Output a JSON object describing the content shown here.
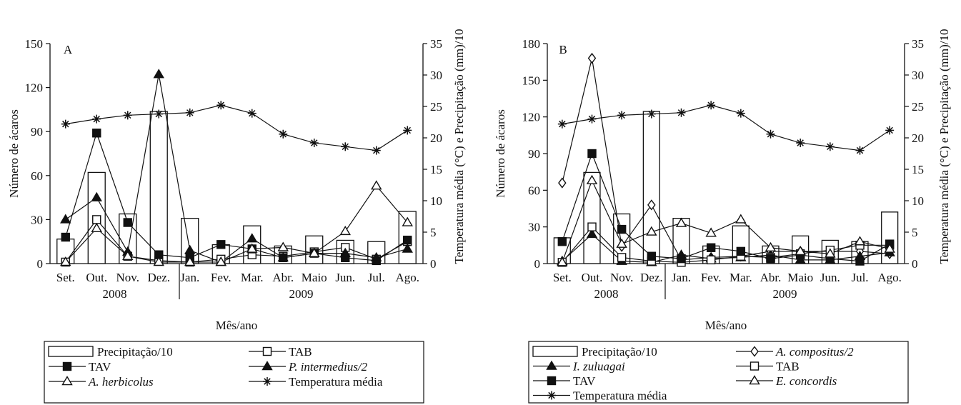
{
  "chart_data": [
    {
      "type": "bar",
      "panel_label": "A",
      "xlabel": "Mês/ano",
      "ylabel": "Número de ácaros",
      "y2label": "Temperatura média (°C) e Precipitação (mm)/10",
      "ylim": [
        0,
        150
      ],
      "yticks": [
        "0",
        "30",
        "60",
        "90",
        "120",
        "150"
      ],
      "y2lim": [
        0,
        35
      ],
      "y2ticks": [
        "0",
        "5",
        "10",
        "15",
        "20",
        "25",
        "30",
        "35"
      ],
      "categories": [
        "Set.",
        "Out.",
        "Nov.",
        "Dez.",
        "Jan.",
        "Fev.",
        "Mar.",
        "Abr.",
        "Maio",
        "Jun.",
        "Jul.",
        "Ago."
      ],
      "years": [
        {
          "label": "2008"
        },
        {
          "label": "2009"
        }
      ],
      "series": [
        {
          "name": "Precipitação/10",
          "kind": "bar",
          "axis": "y2",
          "values": [
            3.9,
            14.5,
            7.9,
            24.2,
            7.2,
            3.0,
            6.0,
            2.8,
            4.4,
            3.7,
            3.5,
            8.3
          ]
        },
        {
          "name": "TAB",
          "kind": "line",
          "marker": "open-square",
          "values": [
            1,
            30,
            5,
            2,
            1,
            3,
            6,
            5,
            8,
            11,
            3,
            15
          ]
        },
        {
          "name": "TAV",
          "kind": "line",
          "marker": "filled-square",
          "values": [
            18,
            89,
            28,
            6,
            4,
            13,
            10,
            4,
            7,
            4,
            2,
            16
          ]
        },
        {
          "name": "P. intermedius/2",
          "kind": "line",
          "marker": "filled-triangle",
          "values": [
            30,
            45,
            8,
            129,
            9,
            1,
            17,
            4,
            7,
            7,
            4,
            10
          ]
        },
        {
          "name": "A. herbicolus",
          "kind": "line",
          "marker": "open-triangle",
          "values": [
            1,
            24,
            5,
            1,
            1,
            1,
            10,
            11,
            7,
            22,
            53,
            28
          ]
        },
        {
          "name": "Temperatura média",
          "kind": "line",
          "marker": "star",
          "axis": "y2",
          "values": [
            22.2,
            23.0,
            23.6,
            23.8,
            24.0,
            25.2,
            23.9,
            20.6,
            19.2,
            18.6,
            18.0,
            21.2
          ]
        }
      ],
      "legend": [
        {
          "label": "Precipitação/10",
          "italic": false
        },
        {
          "label": "TAB",
          "italic": false
        },
        {
          "label": "TAV",
          "italic": false
        },
        {
          "label": "P. intermedius/2",
          "italic": true
        },
        {
          "label": "A. herbicolus",
          "italic": true
        },
        {
          "label": "Temperatura média",
          "italic": false
        }
      ]
    },
    {
      "type": "bar",
      "panel_label": "B",
      "xlabel": "Mês/ano",
      "ylabel": "Número de ácaros",
      "y2label": "Temperatura média (°C) e Precipitação (mm)/10",
      "ylim": [
        0,
        180
      ],
      "yticks": [
        "0",
        "30",
        "60",
        "90",
        "120",
        "150",
        "180"
      ],
      "y2lim": [
        0,
        35
      ],
      "y2ticks": [
        "0",
        "5",
        "10",
        "15",
        "20",
        "25",
        "30",
        "35"
      ],
      "categories": [
        "Set.",
        "Out.",
        "Nov.",
        "Dez.",
        "Jan.",
        "Fev.",
        "Mar.",
        "Abr.",
        "Maio",
        "Jun.",
        "Jul.",
        "Ago."
      ],
      "years": [
        {
          "label": "2008"
        },
        {
          "label": "2009"
        }
      ],
      "series": [
        {
          "name": "Precipitação/10",
          "kind": "bar",
          "axis": "y2",
          "values": [
            4.1,
            14.5,
            7.9,
            24.2,
            7.2,
            2.8,
            6.0,
            2.8,
            4.4,
            3.7,
            3.5,
            8.2
          ]
        },
        {
          "name": "A. compositus/2",
          "kind": "line",
          "marker": "open-diamond",
          "values": [
            66,
            168,
            14,
            48,
            3,
            5,
            6,
            10,
            10,
            10,
            10,
            8
          ]
        },
        {
          "name": "I. zuluagai",
          "kind": "line",
          "marker": "filled-triangle",
          "values": [
            2,
            24,
            2,
            1,
            7,
            4,
            5,
            7,
            3,
            3,
            6,
            9
          ]
        },
        {
          "name": "TAB",
          "kind": "line",
          "marker": "open-square",
          "values": [
            1,
            30,
            5,
            2,
            1,
            3,
            6,
            5,
            8,
            11,
            15,
            15
          ]
        },
        {
          "name": "TAV",
          "kind": "line",
          "marker": "filled-square",
          "values": [
            18,
            90,
            28,
            6,
            4,
            13,
            10,
            4,
            7,
            4,
            2,
            16
          ]
        },
        {
          "name": "E. concordis",
          "kind": "line",
          "marker": "open-triangle",
          "values": [
            1,
            68,
            16,
            26,
            33,
            25,
            36,
            13,
            10,
            8,
            18,
            12
          ]
        },
        {
          "name": "Temperatura média",
          "kind": "line",
          "marker": "star",
          "axis": "y2",
          "values": [
            22.2,
            23.0,
            23.6,
            23.8,
            24.0,
            25.2,
            23.9,
            20.6,
            19.2,
            18.6,
            18.0,
            21.2
          ]
        }
      ],
      "legend": [
        {
          "label": "Precipitação/10",
          "italic": false
        },
        {
          "label": "A. compositus/2",
          "italic": true
        },
        {
          "label": "I. zuluagai",
          "italic": true
        },
        {
          "label": "TAB",
          "italic": false
        },
        {
          "label": "TAV",
          "italic": false
        },
        {
          "label": "E. concordis",
          "italic": true
        },
        {
          "label": "Temperatura média",
          "italic": false
        }
      ]
    }
  ]
}
